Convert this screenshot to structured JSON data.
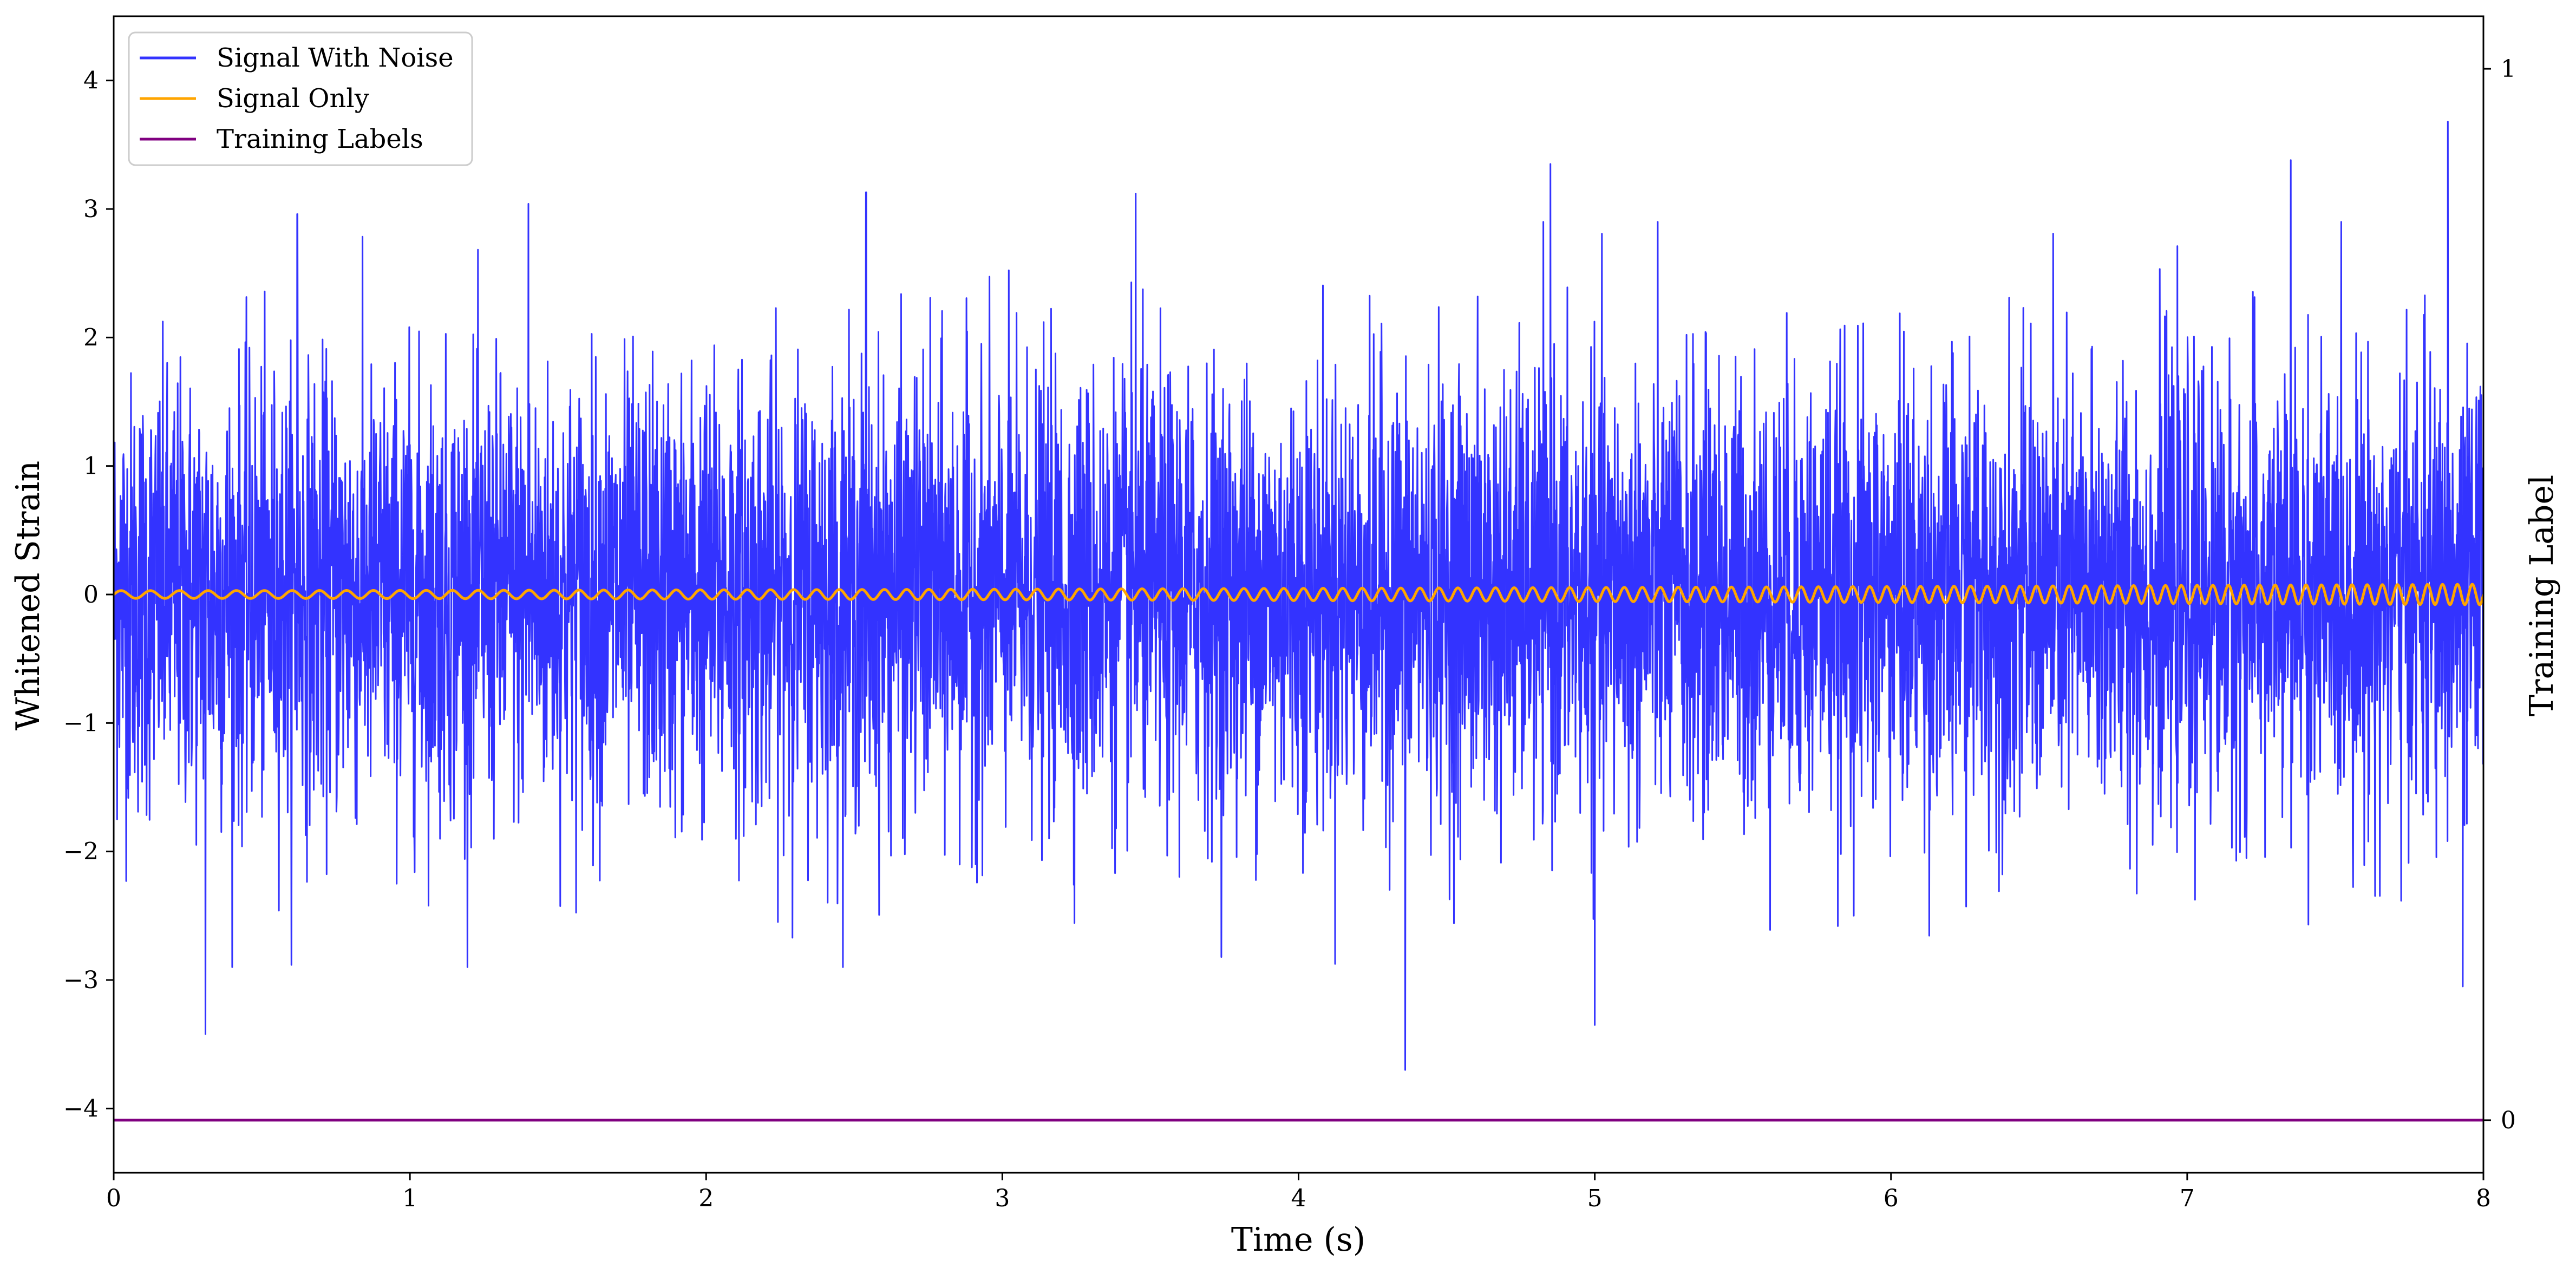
{
  "chart_data": {
    "type": "line",
    "xlabel": "Time (s)",
    "ylabel": "Whitened Strain",
    "y2label": "Training Label",
    "xlim": [
      0,
      8
    ],
    "ylim": [
      -4.5,
      4.5
    ],
    "y2lim": [
      -0.05,
      1.05
    ],
    "x_ticks": [
      "0",
      "1",
      "2",
      "3",
      "4",
      "5",
      "6",
      "7",
      "8"
    ],
    "y_ticks": [
      "−4",
      "−3",
      "−2",
      "−1",
      "0",
      "1",
      "2",
      "3",
      "4"
    ],
    "y2_ticks": [
      "0",
      "1"
    ],
    "grid": false,
    "legend_position": "top-left",
    "series": [
      {
        "name": "Signal With Noise",
        "color": "#3333ff",
        "axis": "left",
        "description": "approximately zero-mean noise, amplitude mostly within ±2",
        "extremes": [
          {
            "x": 0.31,
            "y": -3.42
          },
          {
            "x": 0.62,
            "y": 2.96
          },
          {
            "x": 1.4,
            "y": 3.04
          },
          {
            "x": 2.54,
            "y": 3.13
          },
          {
            "x": 3.45,
            "y": 3.12
          },
          {
            "x": 4.36,
            "y": -3.7
          },
          {
            "x": 4.85,
            "y": 3.35
          },
          {
            "x": 5.0,
            "y": -3.35
          },
          {
            "x": 7.35,
            "y": 3.38
          },
          {
            "x": 7.88,
            "y": 3.68
          },
          {
            "x": 7.93,
            "y": -3.05
          }
        ]
      },
      {
        "name": "Signal Only",
        "color": "#ffa500",
        "axis": "left",
        "description": "chirp oscillation around 0, amplitude growing from ~0.03 to ~0.08, frequency increasing with time",
        "amplitude_start": 0.03,
        "amplitude_end": 0.08
      },
      {
        "name": "Training Labels",
        "color": "#800080",
        "axis": "right",
        "x": [
          0,
          8
        ],
        "values": [
          0,
          0
        ]
      }
    ]
  }
}
